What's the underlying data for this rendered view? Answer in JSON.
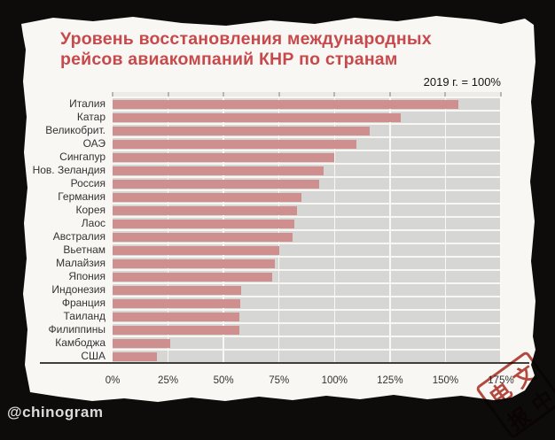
{
  "frame": {
    "watermark": "@chinogram",
    "background_color": "#0d0c0a",
    "paper_color": "#f8f7f4"
  },
  "title": {
    "line1": "Уровень восстановления международных",
    "line2": "рейсов авиакомпаний КНР по странам",
    "color": "#c7494b"
  },
  "subtitle": "2019 г. = 100%",
  "chart_data": {
    "type": "bar",
    "orientation": "horizontal",
    "title": "Уровень восстановления международных рейсов авиакомпаний КНР по странам",
    "note": "2019 г. = 100%",
    "categories": [
      "Италия",
      "Катар",
      "Великобрит.",
      "ОАЭ",
      "Сингапур",
      "Нов. Зеландия",
      "Россия",
      "Германия",
      "Корея",
      "Лаос",
      "Австралия",
      "Вьетнам",
      "Малайзия",
      "Япония",
      "Индонезия",
      "Франция",
      "Таиланд",
      "Филиппины",
      "Камбоджа",
      "США"
    ],
    "values": [
      156,
      130,
      116,
      110,
      100,
      95,
      93,
      85,
      83,
      82,
      81,
      75,
      73,
      72,
      58,
      57.5,
      57,
      57,
      26,
      20
    ],
    "unit": "%",
    "xlim": [
      0,
      175
    ],
    "x_ticks": [
      "0%",
      "25%",
      "50%",
      "75%",
      "100%",
      "125%",
      "150%",
      "175%"
    ],
    "grid": true,
    "bar_color": "#cf8f8e",
    "track_color": "#d6d6d5",
    "legend_position": "none"
  },
  "stamp": {
    "chars": [
      "电",
      "文",
      "报",
      "中"
    ],
    "color": "#b23a30"
  }
}
